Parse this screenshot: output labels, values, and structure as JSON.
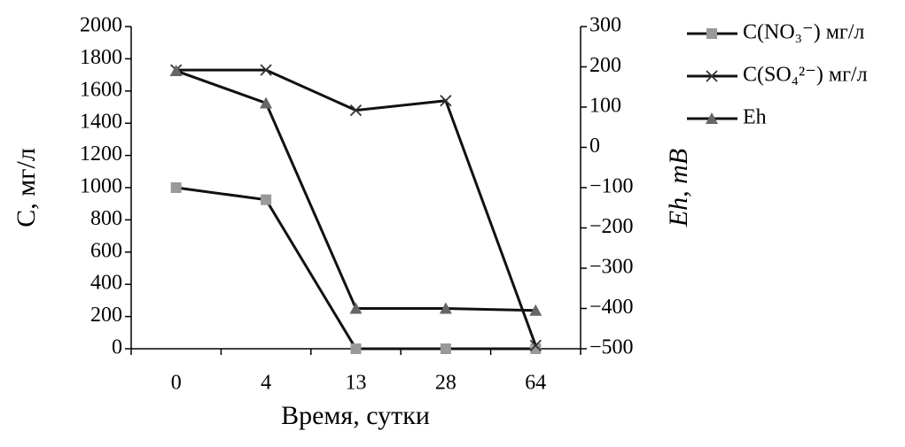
{
  "chart_data": {
    "type": "line",
    "categories": [
      "0",
      "4",
      "13",
      "28",
      "64"
    ],
    "x_label": "Время, сутки",
    "y_label": "C, мг/л",
    "y2_label": "Eh, mB",
    "ylim": [
      0,
      2000
    ],
    "yticks": [
      0,
      200,
      400,
      600,
      800,
      1000,
      1200,
      1400,
      1600,
      1800,
      2000
    ],
    "y2lim": [
      -500,
      300
    ],
    "y2ticks": [
      {
        "value": -500,
        "label": "−500"
      },
      {
        "value": -400,
        "label": "−400"
      },
      {
        "value": -300,
        "label": "−300"
      },
      {
        "value": -200,
        "label": "−200"
      },
      {
        "value": -100,
        "label": "−100"
      },
      0,
      100,
      200,
      300
    ],
    "series": [
      {
        "name": "C(NO₃⁻) мг/л",
        "color": "#999999",
        "marker": "square",
        "values": [
          1000,
          925,
          0,
          0,
          0
        ]
      },
      {
        "name": "C(SO₄²⁻) мг/л",
        "color": "#333333",
        "marker": "x",
        "values": [
          1730,
          1730,
          1480,
          1540,
          20
        ]
      },
      {
        "name": "Eh",
        "color": "#666666",
        "marker": "triangle",
        "axis": "y2",
        "values": [
          190,
          110,
          -400,
          -400,
          -405
        ]
      }
    ]
  }
}
